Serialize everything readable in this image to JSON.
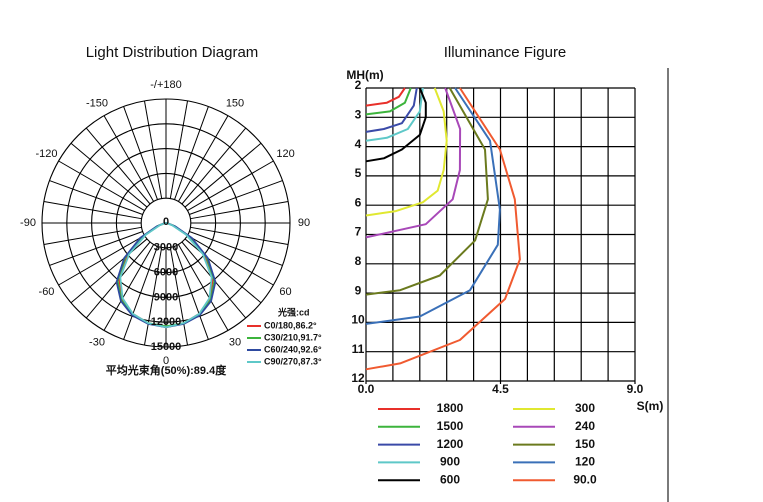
{
  "chart_data": [
    {
      "type": "polar",
      "title": "Light Distribution Diagram",
      "angle_ticks": [
        {
          "value": 180,
          "label": "-/+180"
        },
        150,
        120,
        90,
        60,
        30,
        0,
        -30,
        -60,
        -90,
        -120,
        -150
      ],
      "agrid": [
        -170,
        -160,
        -150,
        -140,
        -130,
        -120,
        -110,
        -100,
        -90,
        -80,
        -70,
        -60,
        -50,
        -40,
        -30,
        -20,
        -10,
        0,
        10,
        20,
        30,
        40,
        50,
        60,
        70,
        80,
        90,
        100,
        110,
        120,
        130,
        140,
        150,
        160,
        170,
        180
      ],
      "rlim": [
        0,
        15000
      ],
      "rticks": [
        0,
        3000,
        6000,
        9000,
        12000,
        15000
      ],
      "legend_title": "光强:cd",
      "x": [
        -90,
        -80,
        -70,
        -60,
        -50,
        -40,
        -30,
        -20,
        -10,
        0,
        10,
        20,
        30,
        40,
        50,
        60,
        70,
        80,
        90
      ],
      "series": [
        {
          "name": "C0/180,86.2°",
          "color": "#e8302a",
          "values": [
            0,
            150,
            900,
            3000,
            6000,
            8800,
            10600,
            11700,
            12300,
            12600,
            12300,
            11700,
            10600,
            8800,
            6000,
            3000,
            900,
            150,
            0
          ]
        },
        {
          "name": "C30/210,91.7°",
          "color": "#3cb43c",
          "values": [
            0,
            200,
            1100,
            3400,
            6400,
            9100,
            10800,
            11800,
            12300,
            12500,
            12300,
            11800,
            10800,
            9100,
            6400,
            3400,
            1100,
            200,
            0
          ]
        },
        {
          "name": "C60/240,92.6°",
          "color": "#2e4aa0",
          "values": [
            0,
            250,
            1200,
            3600,
            6600,
            9300,
            10900,
            11900,
            12400,
            12600,
            12400,
            11900,
            10900,
            9300,
            6600,
            3600,
            1200,
            250,
            0
          ]
        },
        {
          "name": "C90/270,87.3°",
          "color": "#5ec8c8",
          "values": [
            0,
            120,
            800,
            2800,
            5800,
            8600,
            10500,
            11700,
            12300,
            12600,
            12300,
            11700,
            10500,
            8600,
            5800,
            2800,
            800,
            120,
            0
          ]
        }
      ],
      "note": "平均光束角(50%):89.4度"
    },
    {
      "type": "line",
      "title": "Illuminance Figure",
      "y_label": "MH(m)",
      "x_label": "S(m)",
      "xlim": [
        0,
        9
      ],
      "ylim": [
        2,
        12
      ],
      "y_reversed": true,
      "xticks": [
        {
          "value": 0,
          "label": "0.0"
        },
        4.5,
        {
          "value": 9,
          "label": "9.0"
        }
      ],
      "yticks": [
        2,
        3,
        4,
        5,
        6,
        7,
        8,
        9,
        10,
        11,
        12
      ],
      "xgrid": [
        0,
        0.9,
        1.8,
        2.7,
        3.6,
        4.5,
        5.4,
        6.3,
        7.2,
        8.1,
        9
      ],
      "series": [
        {
          "name": "1800",
          "color": "#e8302a",
          "x": [
            1.3,
            1.1,
            0.7,
            0
          ],
          "values": [
            2,
            2.3,
            2.5,
            2.6
          ]
        },
        {
          "name": "1500",
          "color": "#3cb43c",
          "x": [
            1.5,
            1.3,
            0.8,
            0
          ],
          "values": [
            2,
            2.5,
            2.8,
            2.9
          ]
        },
        {
          "name": "1200",
          "color": "#3a4aa8",
          "x": [
            1.7,
            1.6,
            1.2,
            0.6,
            0
          ],
          "values": [
            2,
            2.6,
            3.2,
            3.4,
            3.5
          ]
        },
        {
          "name": "900",
          "color": "#5ec8c8",
          "x": [
            1.9,
            1.8,
            1.4,
            0.7,
            0
          ],
          "values": [
            2,
            2.8,
            3.4,
            3.7,
            3.8
          ]
        },
        {
          "name": "600",
          "color": "#000000",
          "x": [
            1.8,
            2.0,
            2.0,
            1.8,
            1.2,
            0.6,
            0
          ],
          "values": [
            2,
            2.5,
            3.0,
            3.6,
            4.1,
            4.4,
            4.5
          ]
        },
        {
          "name": "300",
          "color": "#e0e830",
          "x": [
            2.3,
            2.6,
            2.7,
            2.6,
            2.4,
            1.9,
            1.0,
            0
          ],
          "values": [
            2,
            2.8,
            3.8,
            4.8,
            5.5,
            5.9,
            6.2,
            6.35
          ]
        },
        {
          "name": "240",
          "color": "#a848b8",
          "x": [
            2.65,
            3.15,
            3.14,
            2.9,
            2.0,
            0
          ],
          "values": [
            2,
            3.4,
            4.8,
            5.8,
            6.65,
            7.1
          ]
        },
        {
          "name": "150",
          "color": "#6b7a1e",
          "x": [
            2.8,
            3.98,
            4.08,
            3.65,
            2.47,
            1.14,
            0
          ],
          "values": [
            2,
            4.1,
            5.8,
            7.2,
            8.4,
            8.9,
            9.05
          ]
        },
        {
          "name": "120",
          "color": "#3a70b8",
          "x": [
            2.98,
            4.15,
            4.48,
            4.41,
            3.48,
            1.8,
            0
          ],
          "values": [
            2,
            3.8,
            6.15,
            7.35,
            8.9,
            9.8,
            10.05
          ]
        },
        {
          "name": "90.0",
          "color": "#f05a30",
          "x": [
            3.14,
            4.48,
            4.98,
            5.15,
            4.65,
            3.14,
            1.14,
            0
          ],
          "values": [
            2,
            4.1,
            5.8,
            7.85,
            9.2,
            10.6,
            11.4,
            11.6
          ]
        }
      ]
    }
  ]
}
